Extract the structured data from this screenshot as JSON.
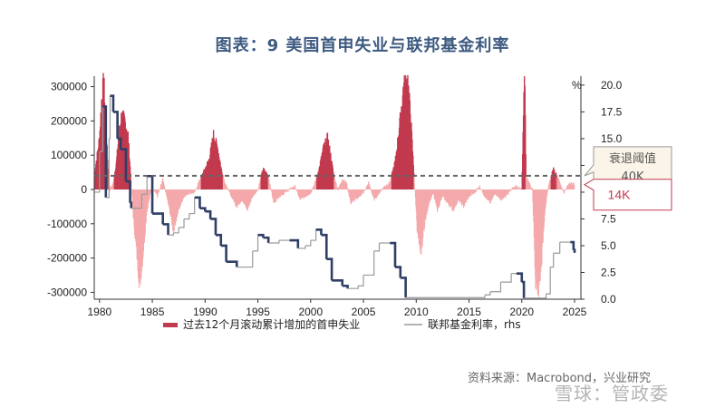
{
  "title": "图表：9 美国首申失业与联邦基金利率",
  "source": "资料来源：Macrobond，兴业研究",
  "watermark": "雪球：管政委",
  "chart_data": {
    "type": "bar+line",
    "title": "图表：9 美国首申失业与联邦基金利率",
    "y_left": {
      "ylim": [
        -320000,
        320000
      ],
      "ticks": [
        300000,
        200000,
        100000,
        0,
        -100000,
        -200000,
        -300000
      ],
      "tick_labels": [
        "300000",
        "200000",
        "100000",
        "0",
        "-100000",
        "-200000",
        "-300000"
      ]
    },
    "y_right": {
      "label": "%",
      "ylim": [
        0,
        20.5
      ],
      "ticks": [
        0,
        2.5,
        5,
        7.5,
        10,
        12.5,
        15,
        17.5,
        20
      ],
      "tick_labels": [
        "0.0",
        "2.5",
        "5.0",
        "7.5",
        "10.0",
        "12.5",
        "15.0",
        "17.5",
        "20.0"
      ]
    },
    "x_axis": {
      "xlim": [
        1979.5,
        2025.6
      ],
      "ticks": [
        1980,
        1985,
        1990,
        1995,
        2000,
        2005,
        2010,
        2015,
        2020,
        2025
      ],
      "tick_labels": [
        "1980",
        "1985",
        "1990",
        "1995",
        "2000",
        "2005",
        "2010",
        "2015",
        "2020",
        "2025"
      ]
    },
    "threshold": {
      "value": 40000,
      "label_cn": "衰退阈值",
      "label_val": "40K",
      "style": "dashed"
    },
    "current_value": {
      "label": "14K",
      "value": 14000
    },
    "series": [
      {
        "name": "过去12个月滚动累计增加的首申失业",
        "axis": "left",
        "color": "#c23a4e",
        "pale_color": "#f4a9ab",
        "points": [
          [
            1979.5,
            40000
          ],
          [
            1980.0,
            150000
          ],
          [
            1980.2,
            260000
          ],
          [
            1980.4,
            320000
          ],
          [
            1980.6,
            200000
          ],
          [
            1980.8,
            60000
          ],
          [
            1981.0,
            0
          ],
          [
            1981.3,
            20000
          ],
          [
            1981.6,
            80000
          ],
          [
            1981.9,
            180000
          ],
          [
            1982.1,
            220000
          ],
          [
            1982.4,
            200000
          ],
          [
            1982.7,
            160000
          ],
          [
            1983.0,
            20000
          ],
          [
            1983.2,
            -80000
          ],
          [
            1983.5,
            -180000
          ],
          [
            1983.8,
            -280000
          ],
          [
            1984.1,
            -200000
          ],
          [
            1984.5,
            -60000
          ],
          [
            1985.0,
            10000
          ],
          [
            1985.5,
            -20000
          ],
          [
            1986.0,
            30000
          ],
          [
            1986.5,
            -40000
          ],
          [
            1987.0,
            -120000
          ],
          [
            1987.5,
            -60000
          ],
          [
            1988.0,
            -20000
          ],
          [
            1988.5,
            -10000
          ],
          [
            1989.0,
            -10000
          ],
          [
            1989.5,
            30000
          ],
          [
            1990.0,
            60000
          ],
          [
            1990.4,
            90000
          ],
          [
            1990.8,
            160000
          ],
          [
            1991.2,
            120000
          ],
          [
            1991.6,
            50000
          ],
          [
            1992.0,
            10000
          ],
          [
            1992.5,
            -20000
          ],
          [
            1993.0,
            -50000
          ],
          [
            1993.5,
            -30000
          ],
          [
            1994.0,
            -60000
          ],
          [
            1994.5,
            -20000
          ],
          [
            1995.0,
            0
          ],
          [
            1995.5,
            60000
          ],
          [
            1996.0,
            40000
          ],
          [
            1996.5,
            -40000
          ],
          [
            1997.0,
            -20000
          ],
          [
            1997.5,
            -10000
          ],
          [
            1998.0,
            0
          ],
          [
            1998.5,
            10000
          ],
          [
            1999.0,
            -30000
          ],
          [
            1999.5,
            -20000
          ],
          [
            2000.0,
            -10000
          ],
          [
            2000.4,
            20000
          ],
          [
            2000.8,
            60000
          ],
          [
            2001.2,
            120000
          ],
          [
            2001.6,
            150000
          ],
          [
            2001.9,
            100000
          ],
          [
            2002.2,
            40000
          ],
          [
            2002.6,
            0
          ],
          [
            2003.0,
            30000
          ],
          [
            2003.4,
            20000
          ],
          [
            2003.8,
            -40000
          ],
          [
            2004.2,
            -30000
          ],
          [
            2004.6,
            -20000
          ],
          [
            2005.0,
            -10000
          ],
          [
            2005.5,
            20000
          ],
          [
            2006.0,
            -30000
          ],
          [
            2006.5,
            -10000
          ],
          [
            2007.0,
            10000
          ],
          [
            2007.5,
            20000
          ],
          [
            2008.0,
            80000
          ],
          [
            2008.4,
            180000
          ],
          [
            2008.8,
            300000
          ],
          [
            2009.2,
            320000
          ],
          [
            2009.5,
            200000
          ],
          [
            2009.8,
            40000
          ],
          [
            2010.1,
            -120000
          ],
          [
            2010.4,
            -200000
          ],
          [
            2010.8,
            -100000
          ],
          [
            2011.2,
            -40000
          ],
          [
            2011.6,
            -10000
          ],
          [
            2012.0,
            -60000
          ],
          [
            2012.5,
            -20000
          ],
          [
            2013.0,
            -40000
          ],
          [
            2013.5,
            -60000
          ],
          [
            2014.0,
            -30000
          ],
          [
            2014.5,
            -50000
          ],
          [
            2015.0,
            -20000
          ],
          [
            2015.5,
            -10000
          ],
          [
            2016.0,
            10000
          ],
          [
            2016.5,
            -20000
          ],
          [
            2017.0,
            -40000
          ],
          [
            2017.5,
            -10000
          ],
          [
            2018.0,
            -30000
          ],
          [
            2018.5,
            -20000
          ],
          [
            2019.0,
            0
          ],
          [
            2019.5,
            10000
          ],
          [
            2020.0,
            0
          ],
          [
            2020.25,
            320000
          ],
          [
            2020.3,
            320000
          ],
          [
            2020.4,
            40000
          ],
          [
            2021.0,
            0
          ],
          [
            2021.3,
            -260000
          ],
          [
            2021.6,
            -300000
          ],
          [
            2021.9,
            -200000
          ],
          [
            2022.2,
            -60000
          ],
          [
            2022.6,
            20000
          ],
          [
            2023.0,
            60000
          ],
          [
            2023.5,
            30000
          ],
          [
            2024.0,
            -10000
          ],
          [
            2024.5,
            20000
          ],
          [
            2025.0,
            14000
          ]
        ]
      },
      {
        "name": "联邦基金利率，rhs",
        "axis": "right",
        "color": "#9a9a9a",
        "cut_color": "#2f3f66",
        "points": [
          [
            1979.5,
            10.0
          ],
          [
            1980.0,
            13.8
          ],
          [
            1980.3,
            18.0
          ],
          [
            1980.6,
            9.5
          ],
          [
            1980.9,
            15.0
          ],
          [
            1981.0,
            19.0
          ],
          [
            1981.3,
            17.5
          ],
          [
            1981.7,
            15.0
          ],
          [
            1982.0,
            14.0
          ],
          [
            1982.5,
            11.0
          ],
          [
            1982.9,
            9.0
          ],
          [
            1983.0,
            8.5
          ],
          [
            1984.0,
            9.8
          ],
          [
            1984.5,
            11.5
          ],
          [
            1985.0,
            8.0
          ],
          [
            1986.0,
            7.0
          ],
          [
            1986.5,
            6.0
          ],
          [
            1987.0,
            6.2
          ],
          [
            1987.5,
            6.7
          ],
          [
            1988.0,
            7.5
          ],
          [
            1988.5,
            8.0
          ],
          [
            1989.0,
            9.5
          ],
          [
            1989.5,
            8.5
          ],
          [
            1990.0,
            8.2
          ],
          [
            1990.5,
            7.5
          ],
          [
            1991.0,
            6.0
          ],
          [
            1991.5,
            5.0
          ],
          [
            1992.0,
            3.5
          ],
          [
            1993.0,
            3.0
          ],
          [
            1994.0,
            3.0
          ],
          [
            1994.5,
            4.5
          ],
          [
            1995.0,
            6.0
          ],
          [
            1995.5,
            5.75
          ],
          [
            1996.0,
            5.25
          ],
          [
            1997.0,
            5.5
          ],
          [
            1998.0,
            5.5
          ],
          [
            1998.8,
            4.75
          ],
          [
            1999.5,
            5.0
          ],
          [
            2000.0,
            5.5
          ],
          [
            2000.5,
            6.5
          ],
          [
            2001.0,
            6.0
          ],
          [
            2001.5,
            3.75
          ],
          [
            2002.0,
            1.75
          ],
          [
            2003.0,
            1.25
          ],
          [
            2003.5,
            1.0
          ],
          [
            2004.5,
            1.25
          ],
          [
            2005.0,
            2.25
          ],
          [
            2006.0,
            4.5
          ],
          [
            2006.5,
            5.25
          ],
          [
            2007.5,
            5.25
          ],
          [
            2008.0,
            3.0
          ],
          [
            2008.5,
            2.0
          ],
          [
            2009.0,
            0.15
          ],
          [
            2015.9,
            0.15
          ],
          [
            2016.5,
            0.4
          ],
          [
            2017.0,
            0.7
          ],
          [
            2018.0,
            1.6
          ],
          [
            2019.0,
            2.4
          ],
          [
            2019.5,
            2.4
          ],
          [
            2020.0,
            1.6
          ],
          [
            2020.2,
            0.1
          ],
          [
            2022.0,
            0.1
          ],
          [
            2022.3,
            0.5
          ],
          [
            2022.7,
            3.0
          ],
          [
            2023.0,
            4.3
          ],
          [
            2023.6,
            5.33
          ],
          [
            2024.6,
            5.33
          ],
          [
            2024.9,
            4.6
          ],
          [
            2025.0,
            4.33
          ]
        ]
      }
    ],
    "legend": [
      {
        "label": "过去12个月滚动累计增加的首申失业",
        "color": "#c23a4e",
        "kind": "bar"
      },
      {
        "label": "联邦基金利率，rhs",
        "color": "#9a9a9a",
        "kind": "line"
      }
    ],
    "legend_position": "bottom",
    "grid": false
  }
}
